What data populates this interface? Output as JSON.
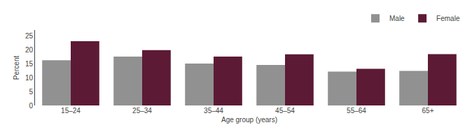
{
  "chart_data": {
    "type": "bar",
    "categories": [
      "15–24",
      "25–34",
      "35–44",
      "45–54",
      "55–64",
      "65+"
    ],
    "series": [
      {
        "name": "Male",
        "color": "#919191",
        "values": [
          16.2,
          17.5,
          15.0,
          14.5,
          12.1,
          12.4
        ]
      },
      {
        "name": "Female",
        "color": "#5c1a35",
        "values": [
          23.0,
          19.8,
          17.5,
          18.3,
          13.1,
          18.4
        ]
      }
    ],
    "xlabel": "Age group (years)",
    "ylabel": "Percent",
    "ylim": [
      0,
      27
    ],
    "yticks": [
      0,
      5,
      10,
      15,
      20,
      25
    ],
    "legend": "upper right",
    "grid": false
  }
}
